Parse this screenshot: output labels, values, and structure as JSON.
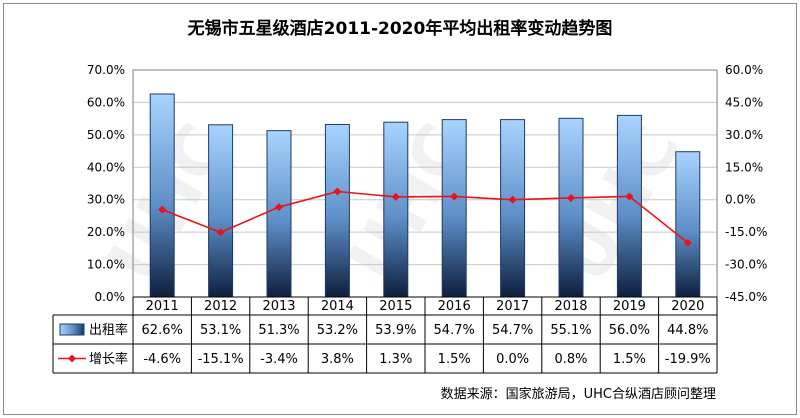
{
  "chart_data": {
    "type": "bar",
    "title": "无锡市五星级酒店2011-2020年平均出租率变动趋势图",
    "categories": [
      "2011",
      "2012",
      "2013",
      "2014",
      "2015",
      "2016",
      "2017",
      "2018",
      "2019",
      "2020"
    ],
    "series": [
      {
        "name": "出租率",
        "type": "bar",
        "axis": "left",
        "values": [
          62.6,
          53.1,
          51.3,
          53.2,
          53.9,
          54.7,
          54.7,
          55.1,
          56.0,
          44.8
        ],
        "labels": [
          "62.6%",
          "53.1%",
          "51.3%",
          "53.2%",
          "53.9%",
          "54.7%",
          "54.7%",
          "55.1%",
          "56.0%",
          "44.8%"
        ],
        "color": "#4f81bd"
      },
      {
        "name": "增长率",
        "type": "line",
        "axis": "right",
        "values": [
          -4.6,
          -15.1,
          -3.4,
          3.8,
          1.3,
          1.5,
          0.0,
          0.8,
          1.5,
          -19.9
        ],
        "labels": [
          "-4.6%",
          "-15.1%",
          "-3.4%",
          "3.8%",
          "1.3%",
          "1.5%",
          "0.0%",
          "0.8%",
          "1.5%",
          "-19.9%"
        ],
        "color": "#e8141b"
      }
    ],
    "y_left": {
      "range": [
        0,
        70
      ],
      "ticks": [
        "0.0%",
        "10.0%",
        "20.0%",
        "30.0%",
        "40.0%",
        "50.0%",
        "60.0%",
        "70.0%"
      ]
    },
    "y_right": {
      "range": [
        -45,
        60
      ],
      "ticks": [
        "-45.0%",
        "-30.0%",
        "-15.0%",
        "0.0%",
        "15.0%",
        "30.0%",
        "45.0%",
        "60.0%"
      ]
    },
    "grid": "horizontal",
    "legend": "data-table",
    "watermark": "UHC"
  },
  "source_note": "数据来源：国家旅游局，UHC合纵酒店顾问整理"
}
